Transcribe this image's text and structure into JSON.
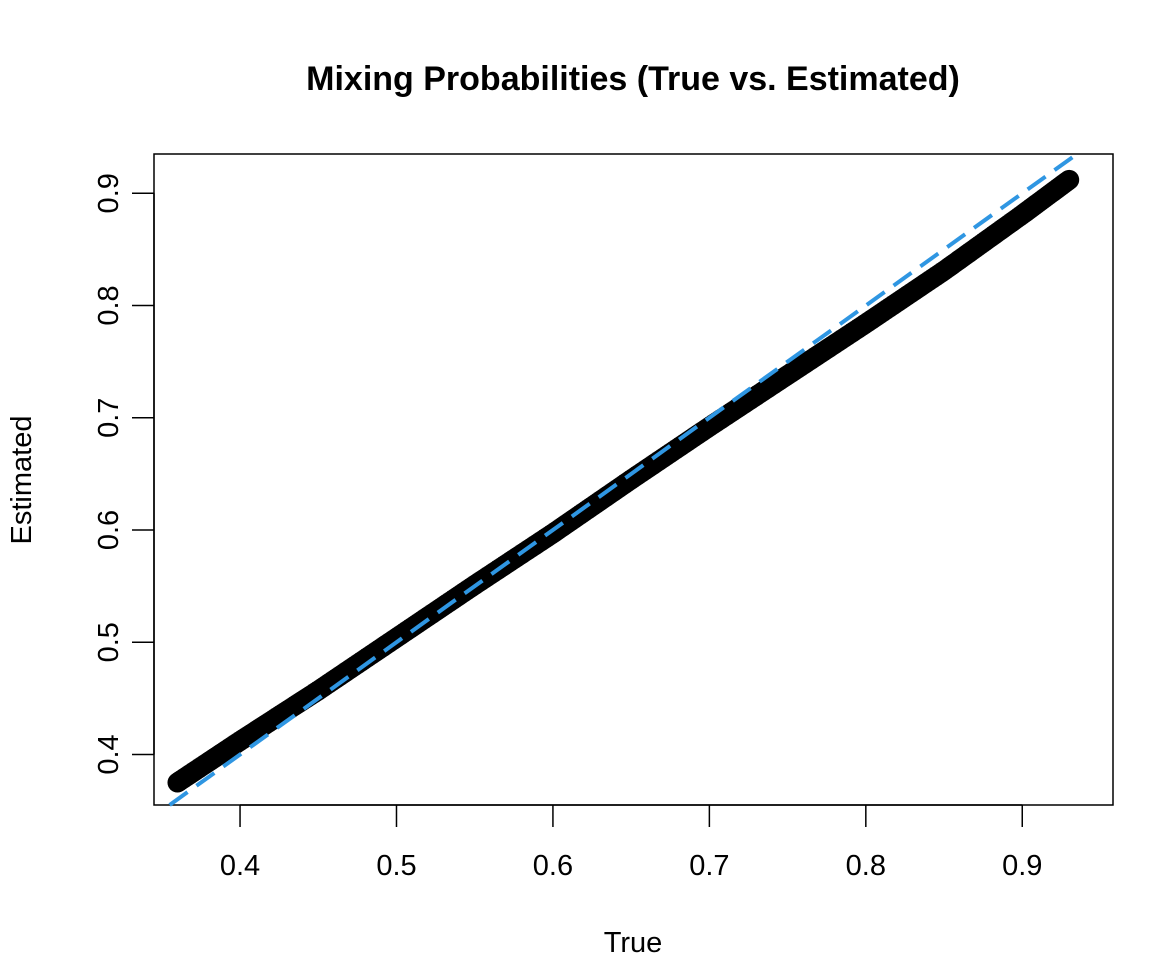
{
  "chart_data": {
    "type": "scatter",
    "title": "Mixing Probabilities (True vs. Estimated)",
    "xlabel": "True",
    "ylabel": "Estimated",
    "xlim": [
      0.345,
      0.958
    ],
    "ylim": [
      0.355,
      0.935
    ],
    "x_ticks": [
      0.4,
      0.5,
      0.6,
      0.7,
      0.8,
      0.9
    ],
    "x_tick_labels": [
      "0.4",
      "0.5",
      "0.6",
      "0.7",
      "0.8",
      "0.9"
    ],
    "y_ticks": [
      0.4,
      0.5,
      0.6,
      0.7,
      0.8,
      0.9
    ],
    "y_tick_labels": [
      "0.4",
      "0.5",
      "0.6",
      "0.7",
      "0.8",
      "0.9"
    ],
    "grid": false,
    "series": [
      {
        "marker": "filled-circle",
        "color": "#000000",
        "x": [
          0.36,
          0.4,
          0.45,
          0.5,
          0.55,
          0.6,
          0.65,
          0.7,
          0.75,
          0.8,
          0.85,
          0.9,
          0.93
        ],
        "y": [
          0.375,
          0.412,
          0.457,
          0.504,
          0.551,
          0.597,
          0.645,
          0.692,
          0.738,
          0.784,
          0.831,
          0.881,
          0.912
        ]
      }
    ],
    "reference_line": {
      "style": "dashed",
      "color": "#2f96e2",
      "intercept": 0,
      "slope": 1
    }
  }
}
